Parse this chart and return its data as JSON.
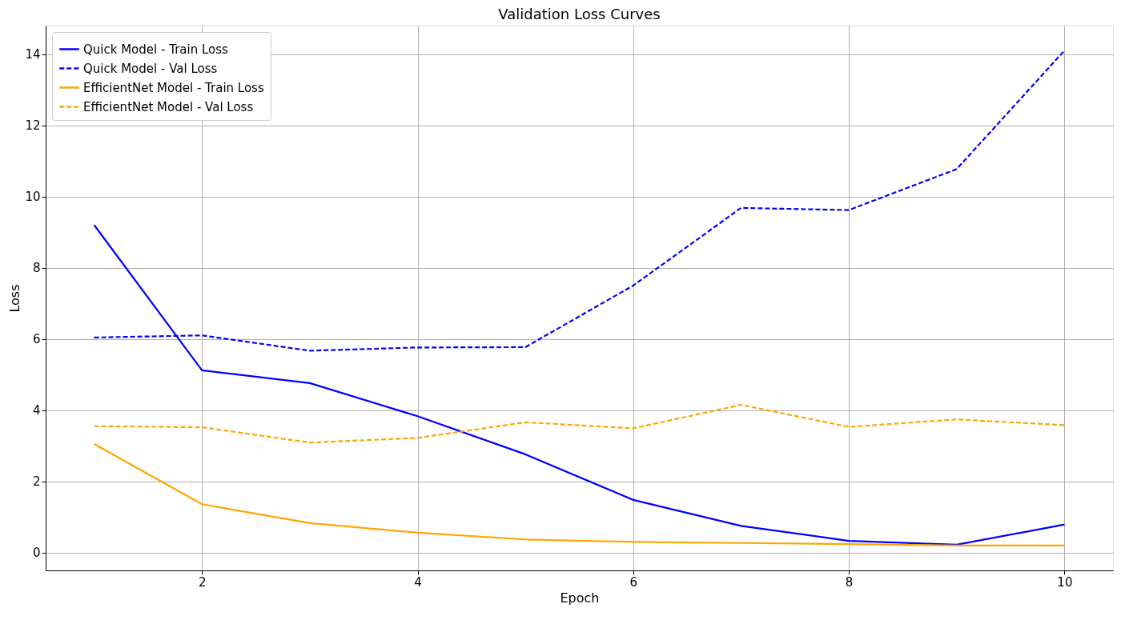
{
  "chart_data": {
    "type": "line",
    "title": "Validation Loss Curves",
    "xlabel": "Epoch",
    "ylabel": "Loss",
    "x": [
      1,
      2,
      3,
      4,
      5,
      6,
      7,
      8,
      9,
      10
    ],
    "series": [
      {
        "name": "Quick Model - Train Loss",
        "color": "#0000ff",
        "line_style": "solid",
        "values": [
          9.2,
          5.12,
          4.76,
          3.83,
          2.76,
          1.48,
          0.75,
          0.33,
          0.22,
          0.79
        ]
      },
      {
        "name": "Quick Model - Val Loss",
        "color": "#0000ff",
        "line_style": "dashed",
        "values": [
          6.04,
          6.1,
          5.67,
          5.76,
          5.77,
          7.5,
          9.68,
          9.62,
          10.77,
          14.1
        ]
      },
      {
        "name": "EfficientNet Model - Train Loss",
        "color": "#ffa500",
        "line_style": "solid",
        "values": [
          3.05,
          1.36,
          0.83,
          0.56,
          0.37,
          0.3,
          0.27,
          0.24,
          0.2,
          0.2
        ]
      },
      {
        "name": "EfficientNet Model - Val Loss",
        "color": "#ffa500",
        "line_style": "dashed",
        "values": [
          3.55,
          3.52,
          3.09,
          3.22,
          3.66,
          3.49,
          4.15,
          3.53,
          3.74,
          3.58
        ]
      }
    ],
    "xlim": [
      0.55,
      10.45
    ],
    "ylim": [
      -0.5,
      14.8
    ],
    "xticks": [
      2,
      4,
      6,
      8,
      10
    ],
    "yticks": [
      0,
      2,
      4,
      6,
      8,
      10,
      12,
      14
    ],
    "grid": true,
    "legend": "top left",
    "marker": "none"
  }
}
